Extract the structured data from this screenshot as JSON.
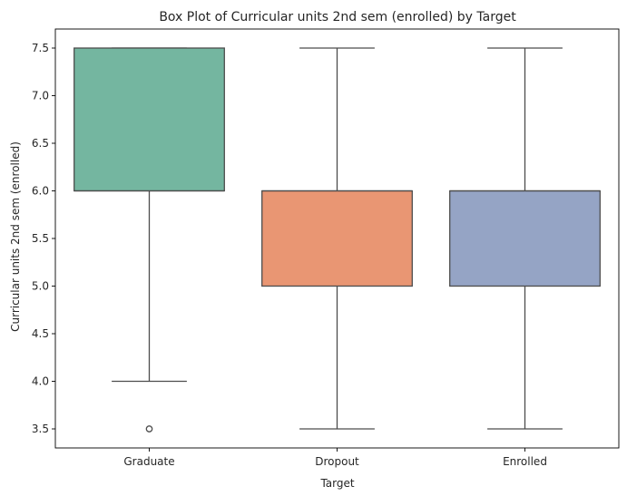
{
  "chart_data": {
    "type": "box",
    "title": "Box Plot of Curricular units 2nd sem (enrolled) by Target",
    "xlabel": "Target",
    "ylabel": "Curricular units 2nd sem (enrolled)",
    "ylim": [
      3.3,
      7.7
    ],
    "yticks": [
      "3.5",
      "4.0",
      "4.5",
      "5.0",
      "5.5",
      "6.0",
      "6.5",
      "7.0",
      "7.5"
    ],
    "categories": [
      "Graduate",
      "Dropout",
      "Enrolled"
    ],
    "boxes": [
      {
        "category": "Graduate",
        "whisker_low": 4.0,
        "q1": 6.0,
        "median": 6.0,
        "q3": 7.5,
        "whisker_high": 7.5,
        "outliers": [
          3.5
        ],
        "color": "#74b6a0"
      },
      {
        "category": "Dropout",
        "whisker_low": 3.5,
        "q1": 5.0,
        "median": 6.0,
        "q3": 6.0,
        "whisker_high": 7.5,
        "outliers": [],
        "color": "#e99673"
      },
      {
        "category": "Enrolled",
        "whisker_low": 3.5,
        "q1": 5.0,
        "median": 6.0,
        "q3": 6.0,
        "whisker_high": 7.5,
        "outliers": [],
        "color": "#95a4c5"
      }
    ],
    "grid": false,
    "colors": {
      "edge": "#4d4d4d",
      "axis": "#000000",
      "text": "#262626"
    }
  }
}
